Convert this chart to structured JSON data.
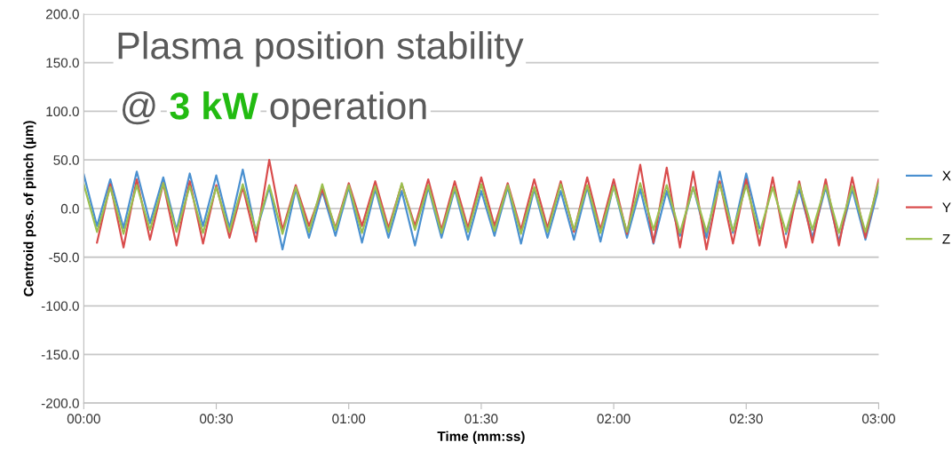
{
  "chart_data": {
    "type": "line",
    "title": "Plasma position stability",
    "annotations": [
      "@",
      "3 kW",
      "operation"
    ],
    "xlabel": "Time (mm:ss)",
    "ylabel": "Centroid pos. of pinch (µm)",
    "x": [
      0,
      3,
      6,
      9,
      12,
      15,
      18,
      21,
      24,
      27,
      30,
      33,
      36,
      39,
      42,
      45,
      48,
      51,
      54,
      57,
      60,
      63,
      66,
      69,
      72,
      75,
      78,
      81,
      84,
      87,
      90,
      93,
      96,
      99,
      102,
      105,
      108,
      111,
      114,
      117,
      120,
      123,
      126,
      129,
      132,
      135,
      138,
      141,
      144,
      147,
      150,
      153,
      156,
      159,
      162,
      165,
      168,
      171,
      174,
      177,
      180
    ],
    "series": [
      {
        "name": "X",
        "color": "#4a90d0",
        "values": [
          35,
          -18,
          30,
          -20,
          38,
          -15,
          32,
          -22,
          36,
          -18,
          34,
          -20,
          40,
          -25,
          22,
          -42,
          20,
          -30,
          18,
          -28,
          22,
          -35,
          20,
          -30,
          18,
          -38,
          22,
          -30,
          20,
          -32,
          18,
          -28,
          22,
          -36,
          20,
          -30,
          18,
          -32,
          22,
          -34,
          24,
          -30,
          20,
          -36,
          18,
          -28,
          22,
          -30,
          38,
          -25,
          36,
          -20,
          null,
          -26,
          20,
          -30,
          22,
          -34,
          20,
          -32,
          22
        ]
      },
      {
        "name": "Y",
        "color": "#d94c4c",
        "values": [
          null,
          -35,
          25,
          -40,
          30,
          -32,
          26,
          -38,
          28,
          -36,
          24,
          -30,
          22,
          -34,
          50,
          -22,
          24,
          -18,
          20,
          -20,
          26,
          -18,
          28,
          -20,
          25,
          -18,
          30,
          -22,
          28,
          -20,
          32,
          -18,
          26,
          -22,
          30,
          -20,
          28,
          -24,
          32,
          -22,
          30,
          -26,
          45,
          -35,
          42,
          -40,
          38,
          -42,
          28,
          -36,
          30,
          -38,
          32,
          -40,
          28,
          -35,
          30,
          -38,
          32,
          -30,
          30
        ]
      },
      {
        "name": "Z",
        "color": "#9bc050",
        "values": [
          25,
          -24,
          22,
          -26,
          24,
          -22,
          26,
          -24,
          23,
          -25,
          22,
          -24,
          25,
          -23,
          24,
          -26,
          22,
          -24,
          25,
          -22,
          24,
          -25,
          23,
          -24,
          26,
          -22,
          24,
          -25,
          22,
          -24,
          25,
          -23,
          24,
          -26,
          22,
          -24,
          25,
          -22,
          24,
          -25,
          23,
          -24,
          26,
          -22,
          24,
          -25,
          22,
          -24,
          25,
          -23,
          24,
          -26,
          22,
          -24,
          25,
          -22,
          24,
          -25,
          23,
          -24,
          26
        ]
      }
    ],
    "xlim": [
      0,
      180
    ],
    "xticks": [
      {
        "value": 0,
        "label": "00:00"
      },
      {
        "value": 30,
        "label": "00:30"
      },
      {
        "value": 60,
        "label": "01:00"
      },
      {
        "value": 90,
        "label": "01:30"
      },
      {
        "value": 120,
        "label": "02:00"
      },
      {
        "value": 150,
        "label": "02:30"
      },
      {
        "value": 180,
        "label": "03:00"
      }
    ],
    "ylim": [
      -200,
      200
    ],
    "yticks": [
      {
        "value": -200,
        "label": "-200.0"
      },
      {
        "value": -150,
        "label": "-150.0"
      },
      {
        "value": -100,
        "label": "-100.0"
      },
      {
        "value": -50,
        "label": "-50.0"
      },
      {
        "value": 0,
        "label": "0.0"
      },
      {
        "value": 50,
        "label": "50.0"
      },
      {
        "value": 100,
        "label": "100.0"
      },
      {
        "value": 150,
        "label": "150.0"
      },
      {
        "value": 200,
        "label": "200.0"
      }
    ],
    "grid": "y",
    "legend": "right",
    "line_style": "solid",
    "marker": "none"
  }
}
